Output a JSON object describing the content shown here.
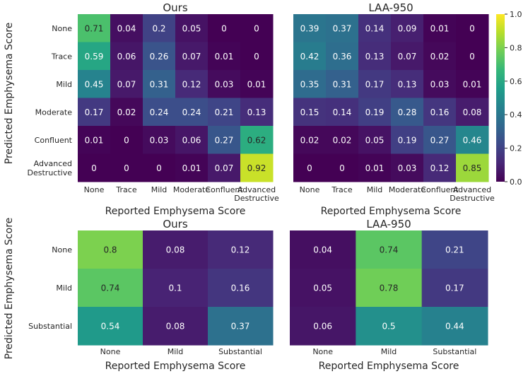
{
  "colors": {
    "viridis": [
      "#440154",
      "#482777",
      "#3e4989",
      "#31688e",
      "#26828e",
      "#1f9e89",
      "#35b779",
      "#6ece58",
      "#b5de2b",
      "#fde725"
    ],
    "text_light": "#ffffff",
    "text_dark": "#262626"
  },
  "chart_data": [
    {
      "type": "heatmap",
      "title": "Ours",
      "xlabel": "Reported Emphysema Score",
      "ylabel": "Predicted Emphysema Score",
      "x_categories": [
        "None",
        "Trace",
        "Mild",
        "Moderate",
        "Confluent",
        "Advanced\nDestructive"
      ],
      "y_categories": [
        "None",
        "Trace",
        "Mild",
        "Moderate",
        "Confluent",
        "Advanced\nDestructive"
      ],
      "values": [
        [
          0.71,
          0.04,
          0.2,
          0.05,
          0,
          0
        ],
        [
          0.59,
          0.06,
          0.26,
          0.07,
          0.01,
          0
        ],
        [
          0.45,
          0.07,
          0.31,
          0.12,
          0.03,
          0.01
        ],
        [
          0.17,
          0.02,
          0.24,
          0.24,
          0.21,
          0.13
        ],
        [
          0.01,
          0,
          0.03,
          0.06,
          0.27,
          0.62
        ],
        [
          0,
          0,
          0,
          0.01,
          0.07,
          0.92
        ]
      ],
      "value_range": [
        0,
        1
      ]
    },
    {
      "type": "heatmap",
      "title": "LAA-950",
      "xlabel": "Reported Emphysema Score",
      "ylabel": "",
      "x_categories": [
        "None",
        "Trace",
        "Mild",
        "Moderate",
        "Confluent",
        "Advanced\nDestructive"
      ],
      "y_categories": [],
      "values": [
        [
          0.39,
          0.37,
          0.14,
          0.09,
          0.01,
          0
        ],
        [
          0.42,
          0.36,
          0.13,
          0.07,
          0.02,
          0
        ],
        [
          0.35,
          0.31,
          0.17,
          0.13,
          0.03,
          0.01
        ],
        [
          0.15,
          0.14,
          0.19,
          0.28,
          0.16,
          0.08
        ],
        [
          0.02,
          0.02,
          0.05,
          0.19,
          0.27,
          0.46
        ],
        [
          0,
          0,
          0.01,
          0.03,
          0.12,
          0.85
        ]
      ],
      "value_range": [
        0,
        1
      ],
      "colorbar": {
        "ticks": [
          "0.0",
          "0.2",
          "0.4",
          "0.6",
          "0.8",
          "1.0"
        ]
      }
    },
    {
      "type": "heatmap",
      "title": "Ours",
      "xlabel": "Reported Emphysema Score",
      "ylabel": "Predicted Emphysema Score",
      "x_categories": [
        "None",
        "Mild",
        "Substantial"
      ],
      "y_categories": [
        "None",
        "Mild",
        "Substantial"
      ],
      "values": [
        [
          0.8,
          0.08,
          0.12
        ],
        [
          0.74,
          0.1,
          0.16
        ],
        [
          0.54,
          0.08,
          0.37
        ]
      ],
      "value_range": [
        0,
        1
      ]
    },
    {
      "type": "heatmap",
      "title": "LAA-950",
      "xlabel": "Reported Emphysema Score",
      "ylabel": "",
      "x_categories": [
        "None",
        "Mild",
        "Substantial"
      ],
      "y_categories": [],
      "values": [
        [
          0.04,
          0.74,
          0.21
        ],
        [
          0.05,
          0.78,
          0.17
        ],
        [
          0.06,
          0.5,
          0.44
        ]
      ],
      "value_range": [
        0,
        1
      ]
    }
  ]
}
